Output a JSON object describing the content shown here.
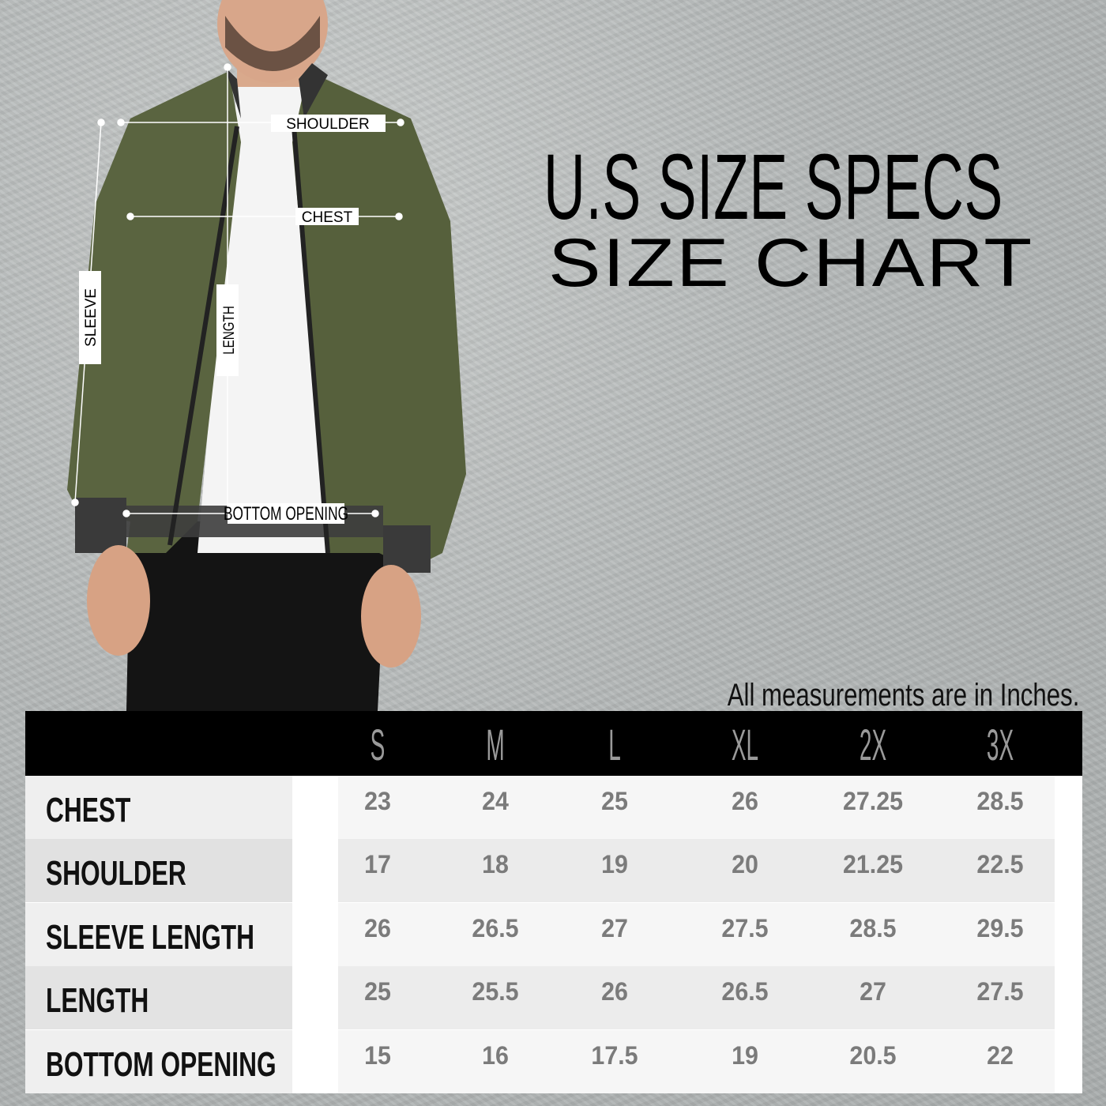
{
  "title": "U.S SIZE SPECS",
  "subtitle": "SIZE CHART",
  "note": "All measurements are in Inches.",
  "diagram_labels": {
    "shoulder": "SHOULDER",
    "chest": "CHEST",
    "sleeve": "SLEEVE",
    "length": "LENGTH",
    "bottom": "BOTTOM OPENING"
  },
  "colors": {
    "jacket": "#59633f",
    "header": "#000000",
    "value_text": "#7b7b7b"
  },
  "table": {
    "sizes": [
      "S",
      "M",
      "L",
      "XL",
      "2X",
      "3X"
    ],
    "rows": [
      {
        "label": "CHEST",
        "values": [
          "23",
          "24",
          "25",
          "26",
          "27.25",
          "28.5"
        ]
      },
      {
        "label": "SHOULDER",
        "values": [
          "17",
          "18",
          "19",
          "20",
          "21.25",
          "22.5"
        ]
      },
      {
        "label": "SLEEVE LENGTH",
        "values": [
          "26",
          "26.5",
          "27",
          "27.5",
          "28.5",
          "29.5"
        ]
      },
      {
        "label": "LENGTH",
        "values": [
          "25",
          "25.5",
          "26",
          "26.5",
          "27",
          "27.5"
        ]
      },
      {
        "label": "BOTTOM OPENING",
        "values": [
          "15",
          "16",
          "17.5",
          "19",
          "20.5",
          "22"
        ]
      }
    ]
  }
}
